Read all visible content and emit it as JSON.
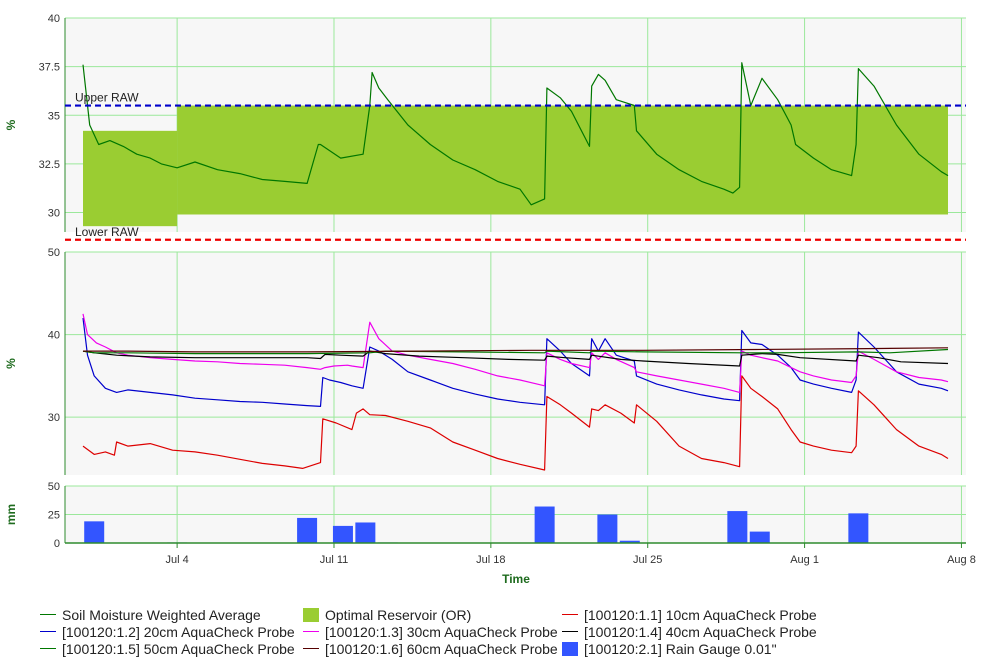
{
  "chart_data": [
    {
      "type": "line",
      "panel": "soil-moisture-weighted",
      "ylabel": "%",
      "ylim": [
        29,
        40
      ],
      "yticks": [
        "30",
        "32.5",
        "35",
        "37.5",
        "40"
      ],
      "ytick_values": [
        30,
        32.5,
        35,
        37.5,
        40
      ],
      "grid": true,
      "thresholds": [
        {
          "name": "Upper RAW",
          "value": 35.5,
          "color": "#0000cc"
        },
        {
          "name": "Lower RAW",
          "value": 28.6,
          "color": "#ee0000"
        }
      ],
      "optimal_reservoir": {
        "name": "Optimal Reservoir (OR)",
        "color": "#9acd32",
        "bands": [
          {
            "from": 0.0,
            "to": 4.2,
            "low": 29.3,
            "high": 34.2
          },
          {
            "from": 4.2,
            "to": 38.6,
            "low": 29.9,
            "high": 35.5
          }
        ]
      },
      "series": [
        {
          "name": "Soil Moisture Weighted Average",
          "color": "#007700",
          "x": [
            0.0,
            0.3,
            0.7,
            1.2,
            1.8,
            2.4,
            3.0,
            3.5,
            4.2,
            5.0,
            6.0,
            7.0,
            8.0,
            9.0,
            10.0,
            10.5,
            10.6,
            11.5,
            12.5,
            12.8,
            12.9,
            13.2,
            13.6,
            14.5,
            15.5,
            16.5,
            17.5,
            18.5,
            19.5,
            20.0,
            20.6,
            20.7,
            21.3,
            21.8,
            22.6,
            22.7,
            23.0,
            23.3,
            23.8,
            24.6,
            24.7,
            25.6,
            26.6,
            27.6,
            28.6,
            29.0,
            29.3,
            29.4,
            29.8,
            30.3,
            31.0,
            31.6,
            31.8,
            32.6,
            33.4,
            34.3,
            34.5,
            34.6,
            35.3,
            36.3,
            37.3,
            38.3,
            38.6
          ],
          "y": [
            37.6,
            34.5,
            33.5,
            33.7,
            33.4,
            33.0,
            32.8,
            32.5,
            32.3,
            32.6,
            32.2,
            32.0,
            31.7,
            31.6,
            31.5,
            33.5,
            33.5,
            32.8,
            33.0,
            35.5,
            37.2,
            36.4,
            35.8,
            34.5,
            33.5,
            32.7,
            32.2,
            31.6,
            31.2,
            30.4,
            30.7,
            36.4,
            35.9,
            35.2,
            33.4,
            36.5,
            37.1,
            36.8,
            35.8,
            35.5,
            34.2,
            33.0,
            32.2,
            31.6,
            31.2,
            31.0,
            31.3,
            37.7,
            35.5,
            36.9,
            35.8,
            34.5,
            33.5,
            32.8,
            32.2,
            31.9,
            33.5,
            37.4,
            36.5,
            34.5,
            33.0,
            32.1,
            31.9
          ]
        }
      ]
    },
    {
      "type": "line",
      "panel": "aquacheck-probes",
      "ylabel": "%",
      "ylim": [
        23,
        50
      ],
      "yticks": [
        "30",
        "40",
        "50"
      ],
      "ytick_values": [
        30,
        40,
        50
      ],
      "grid": true,
      "series": [
        {
          "name": "[100120:1.1] 10cm AquaCheck Probe",
          "color": "#dd0000",
          "x": [
            0.0,
            0.5,
            1.0,
            1.4,
            1.5,
            2.0,
            3.0,
            4.0,
            5.0,
            6.0,
            7.0,
            8.0,
            9.0,
            9.8,
            10.6,
            10.7,
            11.3,
            12.0,
            12.2,
            12.5,
            12.8,
            13.5,
            14.5,
            15.5,
            16.5,
            17.5,
            18.5,
            19.5,
            20.6,
            20.7,
            21.3,
            21.8,
            22.6,
            22.7,
            23.0,
            23.3,
            24.0,
            24.6,
            24.7,
            25.6,
            26.6,
            27.6,
            28.6,
            29.3,
            29.4,
            29.8,
            30.3,
            31.0,
            31.6,
            32.0,
            32.6,
            33.4,
            34.3,
            34.5,
            34.6,
            35.3,
            36.3,
            37.3,
            38.3,
            38.6
          ],
          "y": [
            26.5,
            25.5,
            25.8,
            25.4,
            27.0,
            26.5,
            26.8,
            26.0,
            25.8,
            25.4,
            24.9,
            24.4,
            24.1,
            23.8,
            24.5,
            29.8,
            29.3,
            28.5,
            30.5,
            31.0,
            30.3,
            30.2,
            29.5,
            28.7,
            27.0,
            26.0,
            25.0,
            24.3,
            23.6,
            32.5,
            31.5,
            30.5,
            28.8,
            31.0,
            30.8,
            31.5,
            30.5,
            29.3,
            31.5,
            29.5,
            26.5,
            25.0,
            24.5,
            24.0,
            35.0,
            33.5,
            32.5,
            31.0,
            28.5,
            27.0,
            26.5,
            26.0,
            25.7,
            26.5,
            33.2,
            31.5,
            28.5,
            26.5,
            25.5,
            25.0
          ]
        },
        {
          "name": "[100120:1.2] 20cm AquaCheck Probe",
          "color": "#0000cc",
          "x": [
            0.0,
            0.2,
            0.5,
            1.0,
            1.5,
            2.0,
            3.0,
            4.0,
            5.0,
            6.0,
            7.0,
            8.0,
            9.0,
            10.0,
            10.6,
            10.7,
            11.0,
            11.5,
            12.0,
            12.5,
            12.8,
            13.2,
            13.8,
            14.5,
            15.5,
            16.5,
            17.5,
            18.5,
            19.5,
            20.6,
            20.7,
            21.3,
            21.8,
            22.6,
            22.7,
            23.0,
            23.3,
            23.8,
            24.6,
            24.7,
            25.6,
            26.6,
            27.6,
            28.6,
            29.3,
            29.4,
            29.8,
            30.3,
            31.0,
            31.6,
            32.0,
            32.6,
            33.4,
            34.3,
            34.5,
            34.6,
            35.3,
            36.3,
            37.3,
            38.3,
            38.6
          ],
          "y": [
            42.0,
            37.5,
            35.0,
            33.5,
            33.0,
            33.3,
            33.0,
            32.7,
            32.3,
            32.1,
            31.9,
            31.8,
            31.6,
            31.4,
            31.3,
            34.8,
            34.5,
            34.2,
            33.8,
            33.5,
            38.5,
            38.0,
            37.0,
            35.5,
            34.5,
            33.5,
            32.8,
            32.2,
            31.8,
            31.5,
            39.5,
            38.0,
            36.5,
            35.0,
            39.5,
            38.0,
            39.5,
            37.5,
            36.8,
            35.0,
            34.0,
            33.3,
            32.7,
            32.2,
            32.0,
            40.5,
            39.0,
            38.8,
            37.5,
            36.0,
            34.5,
            34.0,
            33.5,
            33.0,
            34.5,
            40.3,
            38.5,
            35.5,
            34.0,
            33.5,
            33.2
          ]
        },
        {
          "name": "[100120:1.3] 30cm AquaCheck Probe",
          "color": "#ee00ee",
          "x": [
            0.0,
            0.2,
            0.6,
            1.0,
            1.5,
            2.0,
            3.0,
            4.0,
            5.0,
            6.0,
            7.0,
            8.0,
            9.0,
            10.0,
            10.6,
            10.8,
            11.2,
            11.8,
            12.0,
            12.5,
            12.8,
            13.2,
            13.8,
            14.5,
            15.5,
            16.5,
            17.5,
            18.5,
            19.5,
            20.6,
            20.7,
            21.3,
            21.8,
            22.6,
            22.7,
            23.0,
            23.3,
            23.8,
            24.6,
            24.7,
            25.6,
            26.6,
            27.6,
            28.6,
            29.3,
            29.4,
            29.8,
            30.3,
            31.0,
            31.6,
            32.0,
            32.6,
            33.4,
            34.3,
            34.5,
            34.6,
            35.3,
            36.3,
            37.3,
            38.3,
            38.6
          ],
          "y": [
            42.5,
            40.0,
            39.0,
            38.5,
            37.8,
            37.5,
            37.2,
            37.0,
            36.8,
            36.7,
            36.5,
            36.4,
            36.3,
            36.0,
            35.8,
            36.0,
            36.2,
            36.3,
            36.2,
            36.0,
            41.5,
            39.5,
            38.0,
            37.5,
            37.0,
            36.5,
            35.8,
            35.0,
            34.5,
            33.8,
            37.8,
            37.0,
            36.5,
            36.0,
            37.8,
            37.0,
            37.8,
            37.0,
            36.0,
            35.5,
            35.0,
            34.5,
            34.0,
            33.5,
            33.0,
            38.0,
            37.5,
            37.2,
            36.8,
            36.0,
            35.5,
            35.0,
            34.5,
            34.2,
            35.0,
            38.0,
            37.0,
            35.5,
            34.8,
            34.5,
            34.3
          ]
        },
        {
          "name": "[100120:1.4] 40cm AquaCheck Probe",
          "color": "#000000",
          "x": [
            0.0,
            0.5,
            1.5,
            3.0,
            5.0,
            7.0,
            9.0,
            10.0,
            10.6,
            10.8,
            11.5,
            12.5,
            12.8,
            13.5,
            15.0,
            17.0,
            19.0,
            20.6,
            20.7,
            21.5,
            22.6,
            22.7,
            24.0,
            25.0,
            27.0,
            29.3,
            29.4,
            30.3,
            31.0,
            32.0,
            34.5,
            34.6,
            35.5,
            36.5,
            38.6
          ],
          "y": [
            38.0,
            37.8,
            37.5,
            37.3,
            37.2,
            37.2,
            37.2,
            37.2,
            37.1,
            37.6,
            37.5,
            37.4,
            38.0,
            37.7,
            37.4,
            37.2,
            37.0,
            36.9,
            37.4,
            37.2,
            37.0,
            37.5,
            37.0,
            36.8,
            36.5,
            36.2,
            37.5,
            37.7,
            37.6,
            37.2,
            36.8,
            37.5,
            37.2,
            36.7,
            36.5
          ]
        },
        {
          "name": "[100120:1.5] 50cm AquaCheck Probe",
          "color": "#007700",
          "x": [
            0.0,
            0.5,
            2.0,
            5.0,
            10.0,
            12.8,
            13.5,
            20.6,
            20.7,
            22.6,
            22.7,
            25.0,
            29.4,
            31.0,
            34.6,
            36.0,
            38.6
          ],
          "y": [
            38.0,
            37.8,
            37.8,
            37.7,
            37.7,
            37.8,
            38.0,
            37.8,
            38.0,
            37.8,
            38.0,
            37.9,
            37.8,
            37.8,
            37.9,
            37.8,
            38.2
          ]
        },
        {
          "name": "[100120:1.6] 60cm AquaCheck Probe",
          "color": "#550000",
          "x": [
            0.0,
            2.0,
            5.0,
            10.0,
            15.0,
            20.0,
            25.0,
            30.0,
            35.0,
            38.6
          ],
          "y": [
            38.0,
            38.0,
            37.9,
            37.9,
            38.0,
            38.1,
            38.1,
            38.2,
            38.3,
            38.4
          ]
        }
      ]
    },
    {
      "type": "bar",
      "panel": "rain-gauge",
      "ylabel": "mm",
      "ylim": [
        0,
        50
      ],
      "yticks": [
        "0",
        "25",
        "50"
      ],
      "ytick_values": [
        0,
        25,
        50
      ],
      "grid": true,
      "series": [
        {
          "name": "[100120:2.1] Rain Gauge 0.01\"",
          "color": "#3355ff",
          "x": [
            0.5,
            4.2,
            10.0,
            11.6,
            12.6,
            13.6,
            20.6,
            23.4,
            24.4,
            29.2,
            30.2,
            34.6
          ],
          "values": [
            19,
            0.5,
            22,
            15,
            18,
            0.5,
            32,
            25,
            2,
            28,
            10,
            26
          ]
        }
      ]
    }
  ],
  "xaxis": {
    "title": "Time",
    "ticks": [
      "Jul 4",
      "Jul 11",
      "Jul 18",
      "Jul 25",
      "Aug 1",
      "Aug 8"
    ],
    "tick_days": [
      4.2,
      11.2,
      18.2,
      25.2,
      32.2,
      39.2
    ]
  },
  "legend_items": [
    {
      "label": "Soil Moisture Weighted Average",
      "color": "#007700",
      "kind": "line"
    },
    {
      "label": "Optimal Reservoir (OR)",
      "color": "#9acd32",
      "kind": "box"
    },
    {
      "label": "[100120:1.1] 10cm AquaCheck Probe",
      "color": "#dd0000",
      "kind": "line"
    },
    {
      "label": "[100120:1.2] 20cm AquaCheck Probe",
      "color": "#0000cc",
      "kind": "line"
    },
    {
      "label": "[100120:1.3] 30cm AquaCheck Probe",
      "color": "#ee00ee",
      "kind": "line"
    },
    {
      "label": "[100120:1.4] 40cm AquaCheck Probe",
      "color": "#000000",
      "kind": "line"
    },
    {
      "label": "[100120:1.5] 50cm AquaCheck Probe",
      "color": "#007700",
      "kind": "line"
    },
    {
      "label": "[100120:1.6] 60cm AquaCheck Probe",
      "color": "#550000",
      "kind": "line"
    },
    {
      "label": "[100120:2.1] Rain Gauge 0.01\"",
      "color": "#3355ff",
      "kind": "box"
    }
  ]
}
